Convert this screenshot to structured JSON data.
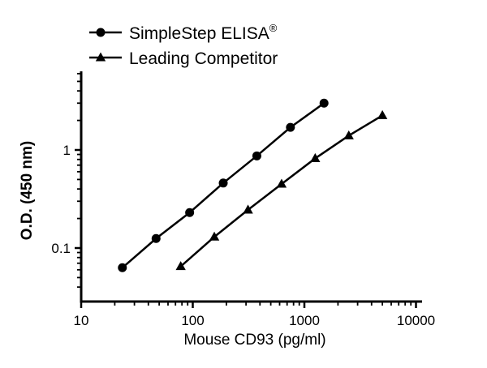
{
  "chart_data": {
    "type": "line",
    "x_scale": "log",
    "y_scale": "log",
    "xlim": [
      10,
      10000
    ],
    "ylim": [
      0.035,
      6
    ],
    "xlabel": "Mouse CD93 (pg/ml)",
    "ylabel": "O.D. (450 nm)",
    "x_ticks": [
      {
        "value": 10,
        "label": "10"
      },
      {
        "value": 100,
        "label": "100"
      },
      {
        "value": 1000,
        "label": "1000"
      },
      {
        "value": 10000,
        "label": "10000"
      }
    ],
    "y_ticks": [
      {
        "value": 0.1,
        "label": "0.1"
      },
      {
        "value": 1,
        "label": "1"
      }
    ],
    "legend_position": "top-left",
    "series": [
      {
        "name": "SimpleStep ELISA",
        "name_superscript": "®",
        "marker": "circle",
        "x": [
          23.4,
          46.9,
          93.75,
          187.5,
          375,
          750,
          1500
        ],
        "y": [
          0.063,
          0.125,
          0.23,
          0.46,
          0.87,
          1.7,
          3.0
        ]
      },
      {
        "name": "Leading Competitor",
        "marker": "triangle",
        "x": [
          78,
          156,
          312.5,
          625,
          1250,
          2500,
          5000
        ],
        "y": [
          0.065,
          0.13,
          0.245,
          0.45,
          0.82,
          1.4,
          2.25
        ]
      }
    ]
  }
}
